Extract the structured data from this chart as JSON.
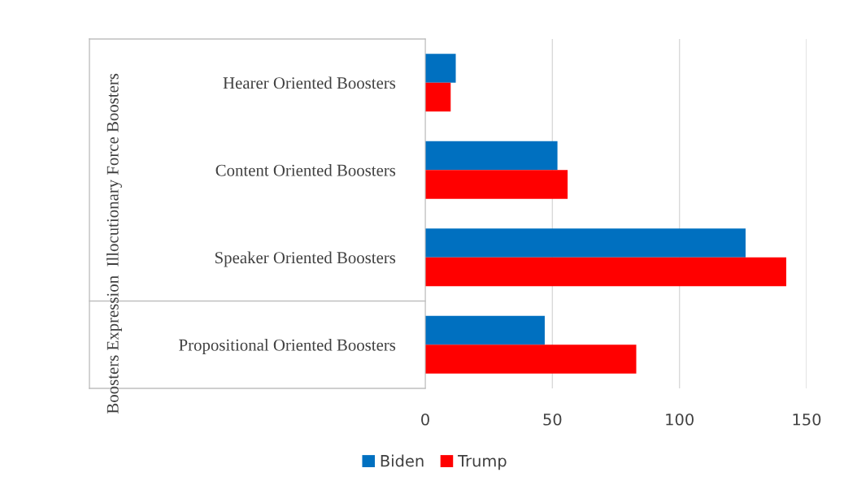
{
  "chart_data": {
    "type": "bar",
    "orientation": "horizontal",
    "categories": [
      "Hearer Oriented Boosters",
      "Content Oriented Boosters",
      "Speaker Oriented Boosters",
      "Propositional Oriented Boosters"
    ],
    "series": [
      {
        "name": "Biden",
        "color": "#0070c0",
        "values": [
          12,
          52,
          126,
          47
        ]
      },
      {
        "name": "Trump",
        "color": "#ff0000",
        "values": [
          10,
          56,
          142,
          83
        ]
      }
    ],
    "xlim": [
      0,
      150
    ],
    "xticks": [
      0,
      50,
      100,
      150
    ],
    "grid": "x",
    "legend": "bottom",
    "annotations": [
      "Illocutionary Force Boosters",
      "Boosters Expression"
    ]
  }
}
